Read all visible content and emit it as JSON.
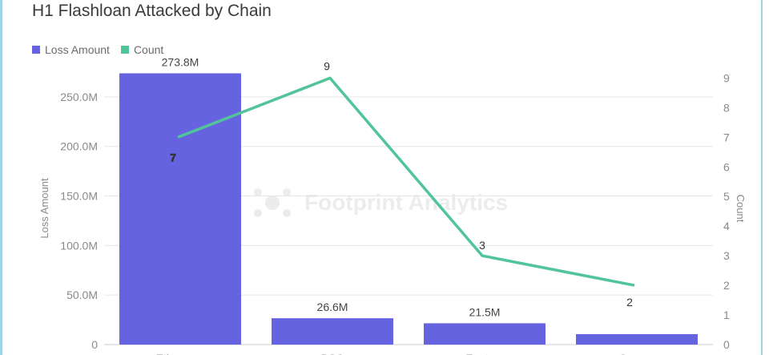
{
  "page": {
    "title": "H1 Flashloan Attacked by Chain"
  },
  "watermark": {
    "text": "Footprint Analytics"
  },
  "colors": {
    "bar": "#6563e0",
    "line": "#52c49a",
    "grid": "#e6e6e6",
    "frame": "#9fd3e6"
  },
  "chart_data": {
    "type": "bar",
    "title": "H1 Flashloan Attacked by Chain",
    "categories": [
      "Ethereum",
      "BSC",
      "Fantom",
      "Cronos"
    ],
    "series": [
      {
        "name": "Loss Amount",
        "type": "bar",
        "axis": "left",
        "values": [
          273.8,
          26.6,
          21.5,
          10.5
        ],
        "labels": [
          "273.8M",
          "26.6M",
          "21.5M",
          ""
        ]
      },
      {
        "name": "Count",
        "type": "line",
        "axis": "right",
        "values": [
          7,
          9,
          3,
          2
        ],
        "labels": [
          "7",
          "9",
          "3",
          "2"
        ]
      }
    ],
    "y_left": {
      "label": "Loss Amount",
      "range": [
        0,
        275
      ],
      "ticks": [
        0,
        50,
        100,
        150,
        200,
        250
      ],
      "tick_labels": [
        "0",
        "50.0M",
        "100.0M",
        "150.0M",
        "200.0M",
        "250.0M"
      ]
    },
    "y_right": {
      "label": "Count",
      "range": [
        0,
        9.2
      ],
      "ticks": [
        0,
        1,
        2,
        3,
        4,
        5,
        6,
        7,
        8,
        9
      ],
      "tick_labels": [
        "0",
        "1",
        "2",
        "3",
        "4",
        "5",
        "6",
        "7",
        "8",
        "9"
      ]
    },
    "grid": true,
    "legend_position": "top-left"
  }
}
